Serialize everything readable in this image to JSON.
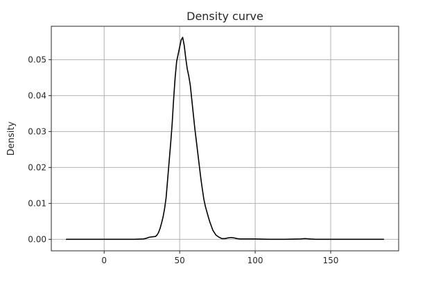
{
  "chart_data": {
    "type": "line",
    "title": "Density curve",
    "xlabel": "",
    "ylabel": "Density",
    "xlim": [
      -35,
      195
    ],
    "ylim": [
      -0.0032,
      0.0593
    ],
    "xticks": [
      0,
      50,
      100,
      150
    ],
    "yticks": [
      0.0,
      0.01,
      0.02,
      0.03,
      0.04,
      0.05
    ],
    "xtick_labels": [
      "0",
      "50",
      "100",
      "150"
    ],
    "ytick_labels": [
      "0.00",
      "0.01",
      "0.02",
      "0.03",
      "0.04",
      "0.05"
    ],
    "grid": true,
    "line_color": "#000000",
    "grid_color": "#b0b0b0",
    "series": [
      {
        "x": [
          -25,
          -10,
          0,
          10,
          20,
          26,
          28,
          30,
          32,
          34,
          35,
          36,
          37,
          38,
          39,
          40,
          41,
          42,
          43,
          44,
          45,
          46,
          47,
          48,
          49,
          50,
          51,
          52,
          53,
          54,
          55,
          56,
          57,
          58,
          59,
          60,
          61,
          62,
          63,
          64,
          65,
          66,
          67,
          68,
          69,
          70,
          72,
          74,
          76,
          78,
          80,
          82,
          84,
          86,
          88,
          90,
          100,
          110,
          120,
          130,
          133,
          136,
          140,
          150,
          160,
          170,
          185
        ],
        "y": [
          0,
          0,
          0,
          0,
          0,
          0.0001,
          0.0003,
          0.0006,
          0.0007,
          0.0008,
          0.0012,
          0.0019,
          0.003,
          0.0045,
          0.0062,
          0.0085,
          0.0115,
          0.0165,
          0.0215,
          0.0265,
          0.032,
          0.039,
          0.045,
          0.0495,
          0.0515,
          0.0535,
          0.0555,
          0.0562,
          0.054,
          0.0505,
          0.0475,
          0.0455,
          0.043,
          0.039,
          0.035,
          0.031,
          0.0275,
          0.024,
          0.0205,
          0.017,
          0.014,
          0.0112,
          0.0092,
          0.0077,
          0.0062,
          0.0048,
          0.0025,
          0.0012,
          0.0006,
          0.0002,
          0.0002,
          0.0004,
          0.0005,
          0.0004,
          0.0002,
          0.0001,
          0.0001,
          0,
          0,
          0.0001,
          0.0002,
          0.0001,
          0,
          0,
          0,
          0,
          0
        ]
      }
    ]
  }
}
